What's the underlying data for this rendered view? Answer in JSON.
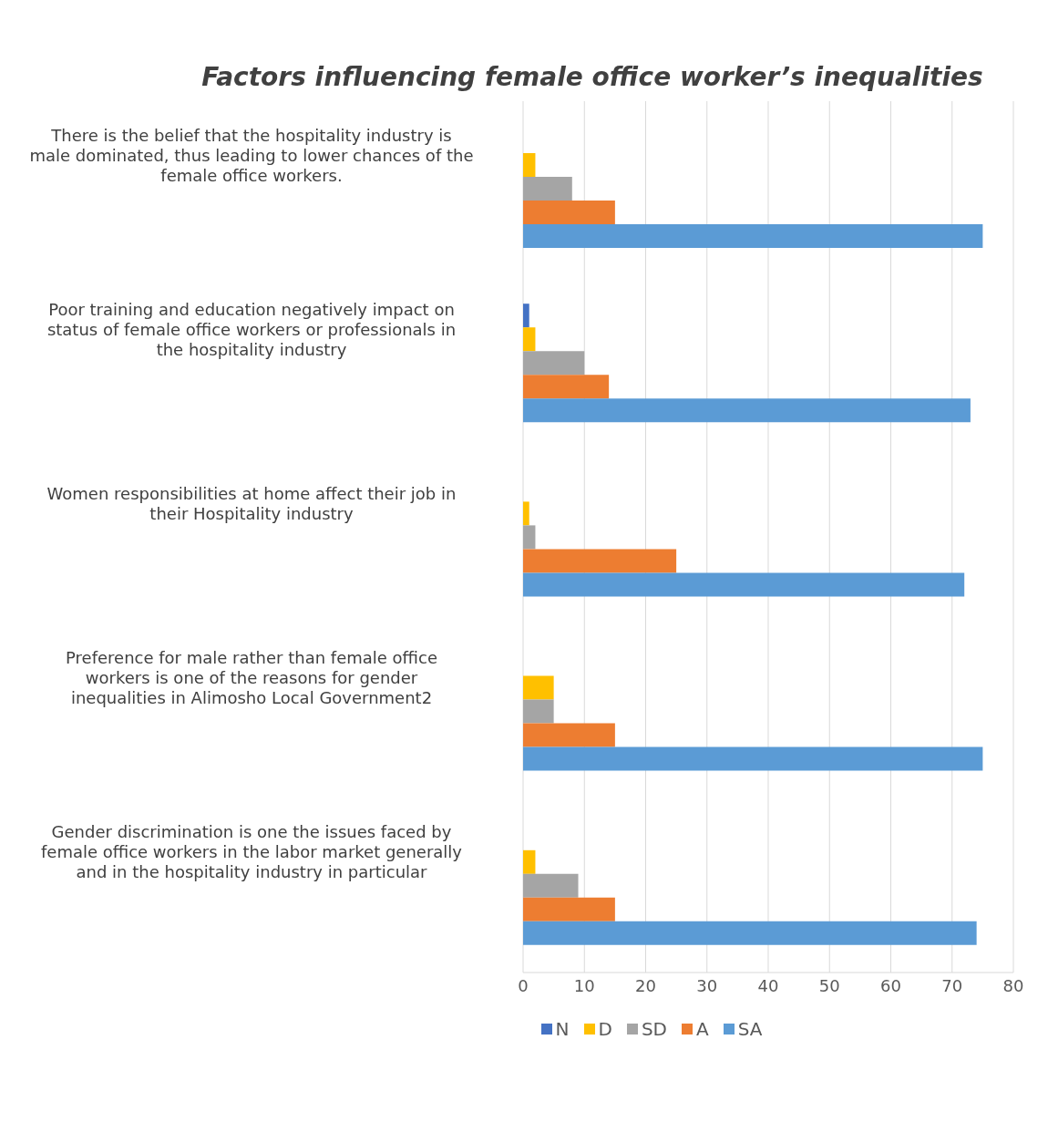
{
  "chart_data": {
    "type": "bar",
    "orientation": "horizontal",
    "title": "Factors influencing female office worker’s inequalities",
    "categories": [
      "There is the belief that the hospitality industry is male dominated, thus leading to lower chances of the female office workers.",
      "Poor training and education negatively impact on status of female office workers or professionals in the hospitality industry",
      "Women responsibilities at home affect their job in their Hospitality industry",
      "Preference for male rather than female office workers is one of the reasons for gender inequalities in Alimosho Local Government2",
      "Gender discrimination is one the issues faced by female office workers in the labor market generally and in the hospitality industry in particular"
    ],
    "series": [
      {
        "name": "N",
        "color": "#4472c4",
        "values": [
          null,
          1,
          null,
          null,
          null
        ]
      },
      {
        "name": "D",
        "color": "#ffc000",
        "values": [
          2,
          2,
          1,
          5,
          2
        ]
      },
      {
        "name": "SD",
        "color": "#a5a5a5",
        "values": [
          8,
          10,
          2,
          5,
          9
        ]
      },
      {
        "name": "A",
        "color": "#ed7d31",
        "values": [
          15,
          14,
          25,
          15,
          15
        ]
      },
      {
        "name": "SA",
        "color": "#5b9bd5",
        "values": [
          75,
          73,
          72,
          75,
          74
        ]
      }
    ],
    "xlim": [
      0,
      80
    ],
    "xticks": [
      0,
      10,
      20,
      30,
      40,
      50,
      60,
      70,
      80
    ],
    "grid": "x",
    "legend": "bottom"
  }
}
